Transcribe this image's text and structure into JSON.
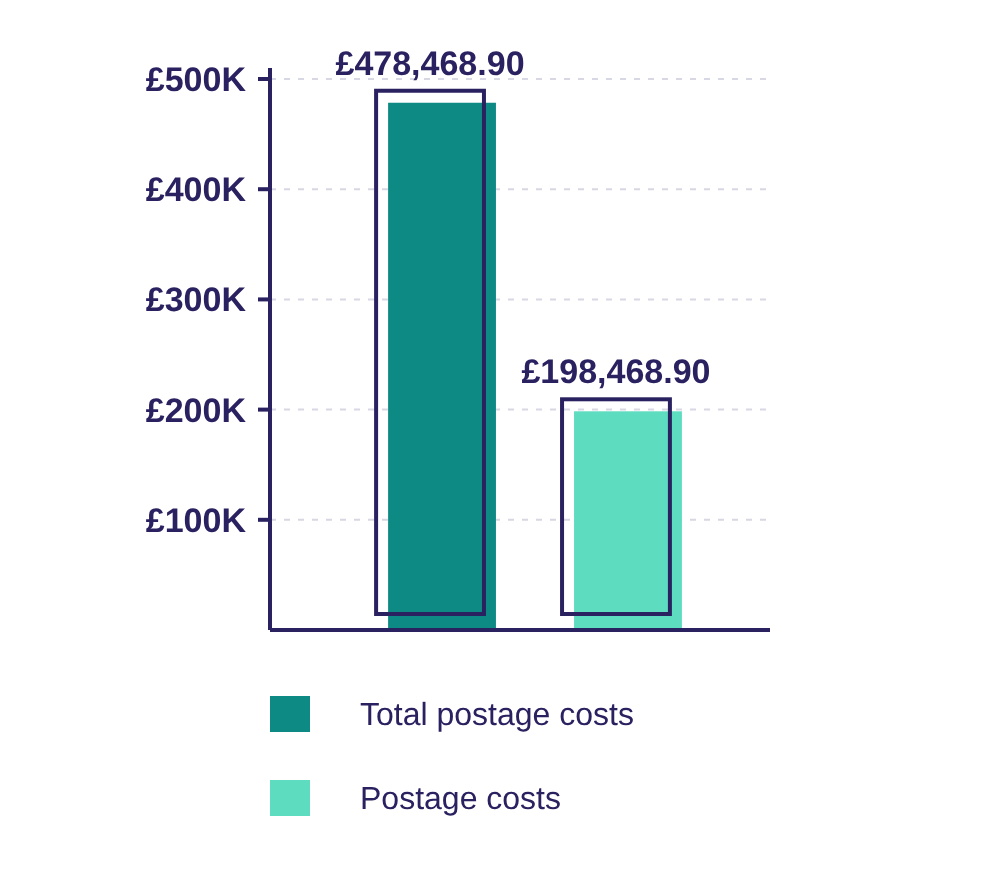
{
  "chart_data": {
    "type": "bar",
    "categories": [
      null,
      null
    ],
    "series": [
      {
        "name": "Total postage costs",
        "color": "#0e8a84",
        "values": [
          478468.9,
          null
        ],
        "value_labels": [
          "£478,468.90",
          null
        ]
      },
      {
        "name": "Postage costs",
        "color": "#5ddcc0",
        "values": [
          null,
          198468.9
        ],
        "value_labels": [
          null,
          "£198,468.90"
        ]
      }
    ],
    "ylim": [
      0,
      510000
    ],
    "yticks": [
      {
        "value": 100000,
        "label": "£100K"
      },
      {
        "value": 200000,
        "label": "£200K"
      },
      {
        "value": 300000,
        "label": "£300K"
      },
      {
        "value": 400000,
        "label": "£400K"
      },
      {
        "value": 500000,
        "label": "£500K"
      }
    ],
    "grid": "y",
    "legend": "bottom"
  }
}
